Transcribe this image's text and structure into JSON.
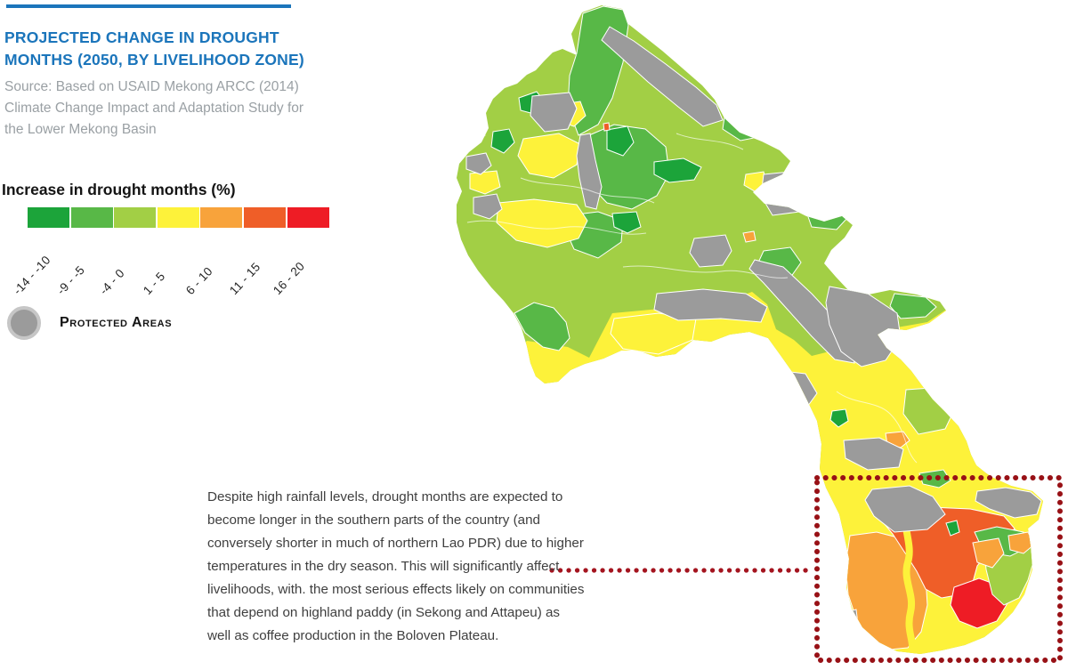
{
  "header": {
    "title": "PROJECTED CHANGE IN DROUGHT MONTHS (2050, BY LIVELIHOOD ZONE)",
    "source": "Source: Based on USAID Mekong ARCC (2014) Climate Change Impact and Adaptation Study for the Lower Mekong Basin",
    "accent_color": "#1b75bb"
  },
  "legend": {
    "title": "Increase in drought months (%)",
    "classes": [
      {
        "label": "-14 - -10",
        "color": "#1ca43a"
      },
      {
        "label": "-9 - -5",
        "color": "#58b847"
      },
      {
        "label": "-4 - 0",
        "color": "#a2cf45"
      },
      {
        "label": "1 - 5",
        "color": "#fdf23a"
      },
      {
        "label": "6 - 10",
        "color": "#f8a33b"
      },
      {
        "label": "11 - 15",
        "color": "#ef5e28"
      },
      {
        "label": "16 - 20",
        "color": "#ee1c25"
      }
    ],
    "protected_areas_label": "Protected Areas",
    "protected_color": "#9b9b9b"
  },
  "map": {
    "region": "Lao PDR livelihood zones choropleth",
    "highlight_box_color": "#981116",
    "leader_color": "#a4141f"
  },
  "annotation": {
    "text": "Despite high rainfall levels, drought months are expected to become longer in the southern parts of the country (and conversely shorter in much of northern Lao PDR) due to higher temperatures in the dry season. This will significantly affect livelihoods, with. the most serious effects likely on communities that depend on highland paddy (in Sekong and Attapeu) as well as coffee production in the Boloven Plateau."
  }
}
